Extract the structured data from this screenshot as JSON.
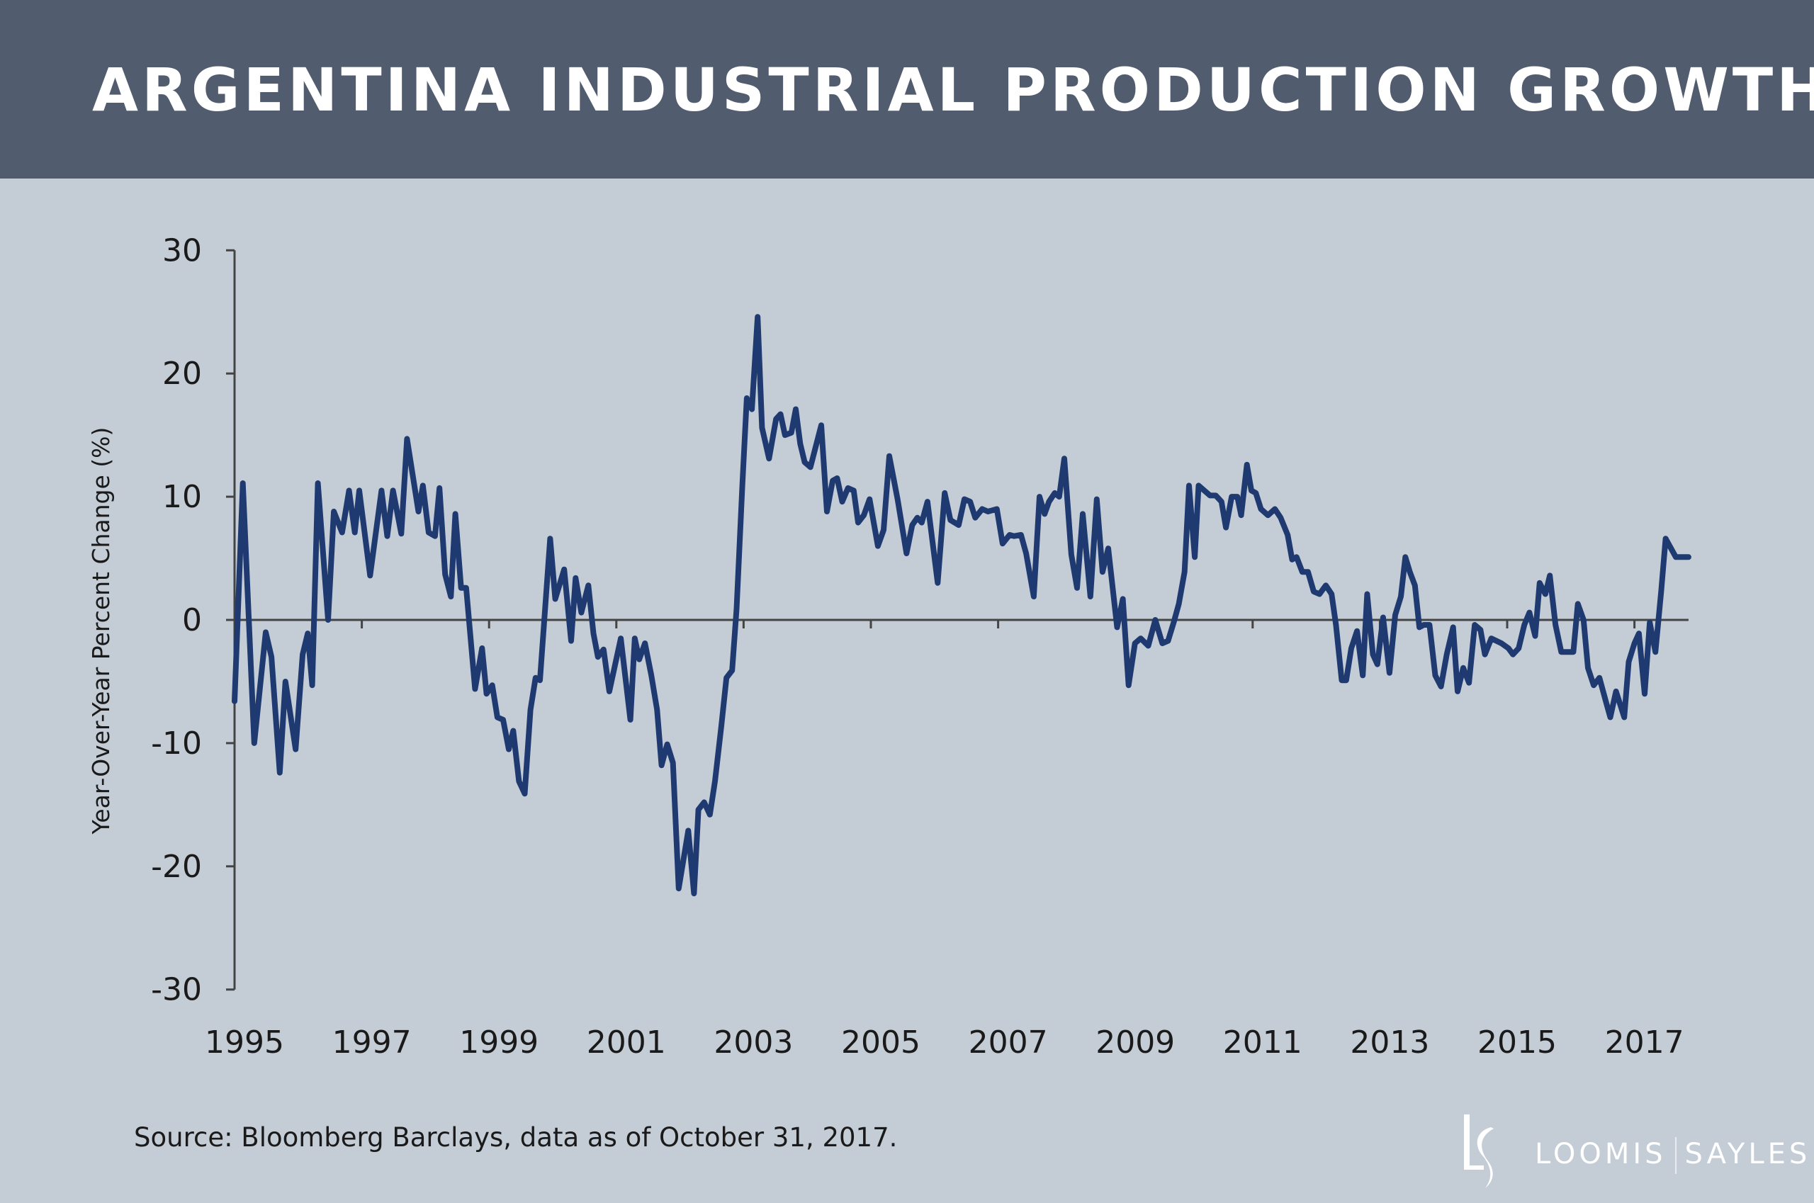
{
  "header": {
    "title": "ARGENTINA INDUSTRIAL PRODUCTION GROWTH"
  },
  "footer": {
    "source": "Source: Bloomberg Barclays, data as of October 31, 2017."
  },
  "logo": {
    "left": "LOOMIS",
    "right": "SAYLES",
    "monogram": "LS"
  },
  "colors": {
    "header_bg": "#525c6f",
    "plot_bg": "#c4ccd6",
    "series": "#1f3a70",
    "axis": "#444444"
  },
  "chart_data": {
    "type": "line",
    "title": "ARGENTINA INDUSTRIAL PRODUCTION GROWTH",
    "xlabel": "",
    "ylabel": "Year-Over-Year Percent Change (%)",
    "xlim": [
      1995,
      2017.85
    ],
    "ylim": [
      -30,
      30
    ],
    "yticks": [
      30,
      20,
      10,
      0,
      -10,
      -20,
      -30
    ],
    "ytick_labels": [
      "30",
      "20",
      "10",
      "0",
      "-10",
      "-20",
      "-30"
    ],
    "xticks": [
      1995,
      1997,
      1999,
      2001,
      2003,
      2005,
      2007,
      2009,
      2011,
      2013,
      2015,
      2017
    ],
    "xtick_labels": [
      "1995",
      "1997",
      "1999",
      "2001",
      "2003",
      "2005",
      "2007",
      "2009",
      "2011",
      "2013",
      "2015",
      "2017"
    ],
    "grid": false,
    "zero_line": true,
    "series": [
      {
        "x": [
          1995.0,
          1995.13,
          1995.31,
          1995.49,
          1995.58,
          1995.71,
          1995.8,
          1995.96,
          1996.07,
          1996.15,
          1996.22,
          1996.31,
          1996.47,
          1996.56,
          1996.69,
          1996.8,
          1996.89,
          1996.96,
          1997.13,
          1997.31,
          1997.4,
          1997.49,
          1997.62,
          1997.71,
          1997.89,
          1997.96,
          1998.05,
          1998.15,
          1998.22,
          1998.31,
          1998.4,
          1998.47,
          1998.56,
          1998.64,
          1998.78,
          1998.89,
          1998.96,
          1999.05,
          1999.13,
          1999.22,
          1999.31,
          1999.38,
          1999.47,
          1999.56,
          1999.65,
          1999.73,
          1999.8,
          1999.96,
          2000.04,
          2000.18,
          2000.29,
          2000.36,
          2000.45,
          2000.56,
          2000.64,
          2000.71,
          2000.8,
          2000.89,
          2001.07,
          2001.22,
          2001.29,
          2001.36,
          2001.45,
          2001.55,
          2001.64,
          2001.71,
          2001.8,
          2001.89,
          2001.98,
          2002.13,
          2002.22,
          2002.29,
          2002.38,
          2002.47,
          2002.55,
          2002.65,
          2002.73,
          2002.82,
          2002.89,
          2002.98,
          2003.05,
          2003.13,
          2003.22,
          2003.29,
          2003.4,
          2003.51,
          2003.58,
          2003.65,
          2003.75,
          2003.82,
          2003.89,
          2003.96,
          2004.05,
          2004.22,
          2004.31,
          2004.4,
          2004.47,
          2004.55,
          2004.64,
          2004.73,
          2004.8,
          2004.89,
          2004.98,
          2005.11,
          2005.2,
          2005.29,
          2005.42,
          2005.56,
          2005.65,
          2005.73,
          2005.8,
          2005.89,
          2006.05,
          2006.16,
          2006.25,
          2006.38,
          2006.47,
          2006.56,
          2006.64,
          2006.75,
          2006.84,
          2006.98,
          2007.07,
          2007.18,
          2007.25,
          2007.36,
          2007.44,
          2007.56,
          2007.65,
          2007.73,
          2007.8,
          2007.89,
          2007.96,
          2008.04,
          2008.15,
          2008.24,
          2008.33,
          2008.45,
          2008.55,
          2008.64,
          2008.73,
          2008.87,
          2008.96,
          2009.05,
          2009.15,
          2009.24,
          2009.36,
          2009.47,
          2009.58,
          2009.67,
          2009.76,
          2009.84,
          2009.93,
          2010.0,
          2010.09,
          2010.15,
          2010.33,
          2010.42,
          2010.51,
          2010.58,
          2010.67,
          2010.76,
          2010.82,
          2010.91,
          2010.98,
          2011.05,
          2011.13,
          2011.24,
          2011.35,
          2011.44,
          2011.55,
          2011.62,
          2011.69,
          2011.78,
          2011.87,
          2011.96,
          2012.05,
          2012.15,
          2012.24,
          2012.31,
          2012.4,
          2012.47,
          2012.55,
          2012.64,
          2012.73,
          2012.8,
          2012.89,
          2012.96,
          2013.05,
          2013.15,
          2013.24,
          2013.33,
          2013.4,
          2013.47,
          2013.55,
          2013.62,
          2013.69,
          2013.78,
          2013.87,
          2013.96,
          2014.05,
          2014.15,
          2014.22,
          2014.31,
          2014.4,
          2014.49,
          2014.58,
          2014.65,
          2014.75,
          2014.91,
          2015.02,
          2015.09,
          2015.18,
          2015.27,
          2015.35,
          2015.44,
          2015.51,
          2015.6,
          2015.67,
          2015.76,
          2015.85,
          2015.95,
          2016.04,
          2016.11,
          2016.2,
          2016.27,
          2016.36,
          2016.45,
          2016.55,
          2016.62,
          2016.71,
          2016.84,
          2016.91,
          2017.0,
          2017.07,
          2017.16,
          2017.24,
          2017.33,
          2017.42,
          2017.49,
          2017.65,
          2017.85
        ],
        "y": [
          -6.6,
          11.1,
          -10,
          -1,
          -3,
          -12.4,
          -5,
          -10.5,
          -2.8,
          -1.1,
          -5.3,
          11.1,
          0,
          8.8,
          7.1,
          10.5,
          7.1,
          10.5,
          3.6,
          10.5,
          6.8,
          10.5,
          7,
          14.7,
          8.8,
          10.9,
          7.1,
          6.8,
          10.7,
          3.7,
          1.9,
          8.6,
          2.6,
          2.6,
          -5.6,
          -2.3,
          -6,
          -5.3,
          -7.9,
          -8.1,
          -10.5,
          -9,
          -13.1,
          -14.1,
          -7.3,
          -4.7,
          -4.9,
          6.6,
          1.7,
          4.1,
          -1.7,
          3.4,
          0.6,
          2.8,
          -1.1,
          -3,
          -2.4,
          -5.8,
          -1.5,
          -8.1,
          -1.5,
          -3.2,
          -1.9,
          -4.5,
          -7.3,
          -11.8,
          -10.1,
          -11.6,
          -21.8,
          -17.1,
          -22.2,
          -15.4,
          -14.8,
          -15.8,
          -13.1,
          -8.6,
          -4.7,
          -4.1,
          0.9,
          10.9,
          18,
          17.1,
          24.6,
          15.6,
          13.1,
          16.3,
          16.7,
          15,
          15.2,
          17.1,
          14.3,
          12.8,
          12.4,
          15.8,
          8.8,
          11.3,
          11.5,
          9.6,
          10.7,
          10.5,
          7.9,
          8.5,
          9.8,
          6,
          7.3,
          13.3,
          9.8,
          5.4,
          7.7,
          8.3,
          7.9,
          9.6,
          3,
          10.3,
          8.1,
          7.7,
          9.8,
          9.6,
          8.3,
          9,
          8.8,
          9,
          6.2,
          6.9,
          6.8,
          6.9,
          5.4,
          1.9,
          10,
          8.6,
          9.6,
          10.3,
          10,
          13.1,
          5.3,
          2.6,
          8.6,
          1.9,
          9.8,
          3.9,
          5.8,
          -0.6,
          1.7,
          -5.3,
          -1.9,
          -1.5,
          -2.1,
          0,
          -1.9,
          -1.7,
          -0.2,
          1.3,
          3.9,
          10.9,
          5.1,
          10.9,
          10.1,
          10.1,
          9.6,
          7.5,
          10,
          10,
          8.5,
          12.6,
          10.5,
          10.3,
          9,
          8.5,
          9,
          8.3,
          6.9,
          4.9,
          5.1,
          3.9,
          3.9,
          2.3,
          2.1,
          2.8,
          2.1,
          -0.4,
          -4.9,
          -4.9,
          -2.3,
          -0.9,
          -4.5,
          2.1,
          -2.8,
          -3.6,
          0.2,
          -4.3,
          0.4,
          1.9,
          5.1,
          3.9,
          2.8,
          -0.6,
          -0.4,
          -0.4,
          -4.5,
          -5.4,
          -2.8,
          -0.6,
          -5.8,
          -3.9,
          -5.1,
          -0.4,
          -0.8,
          -2.8,
          -1.5,
          -1.9,
          -2.3,
          -2.8,
          -2.3,
          -0.4,
          0.6,
          -1.3,
          3,
          2.1,
          3.6,
          -0.4,
          -2.6,
          -2.6,
          -2.6,
          1.3,
          0,
          -3.9,
          -5.3,
          -4.7,
          -6.6,
          -7.9,
          -5.8,
          -7.9,
          -3.4,
          -1.9,
          -1.1,
          -6,
          -0.2,
          -2.6,
          2.3,
          6.6,
          5.1,
          5.1
        ]
      }
    ]
  }
}
